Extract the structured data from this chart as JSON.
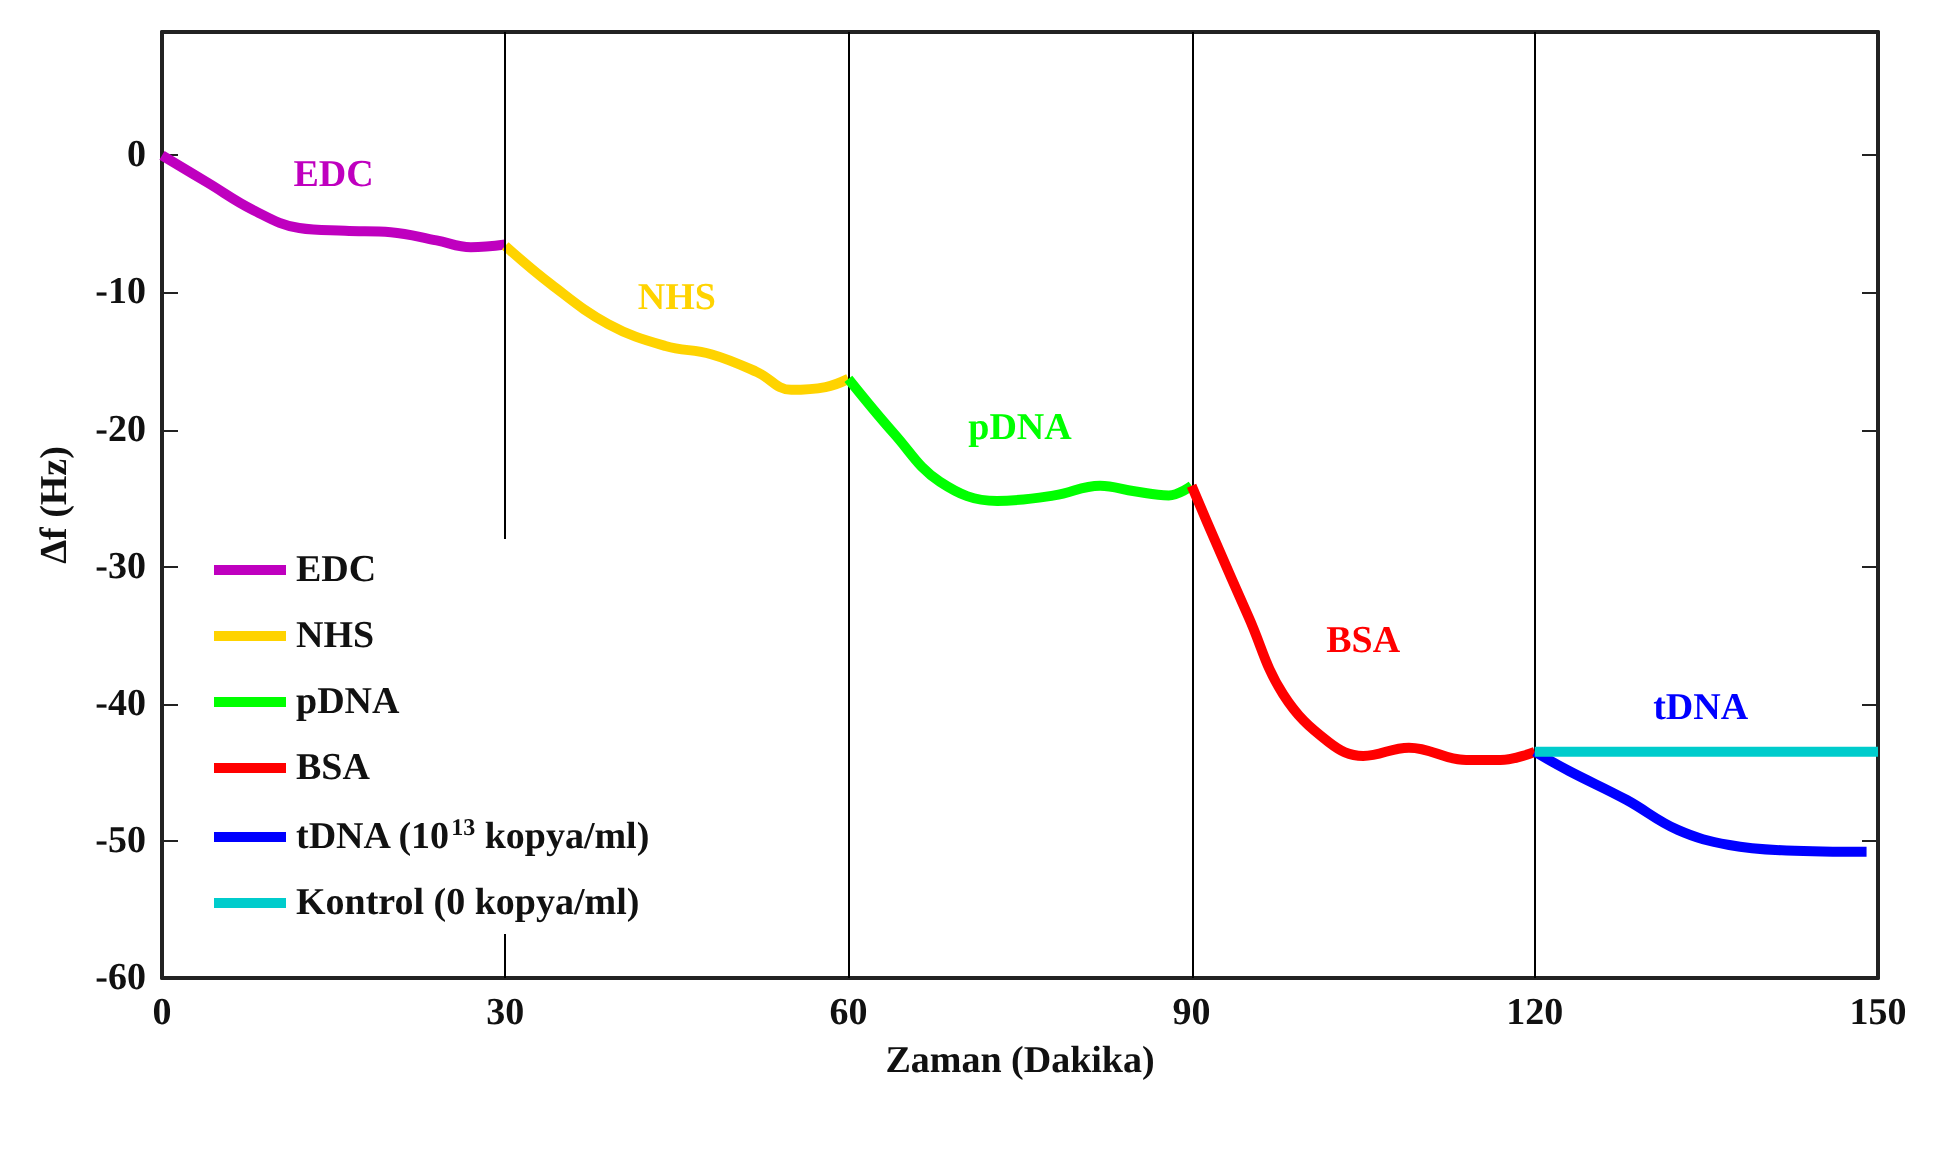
{
  "chart_data": {
    "type": "line",
    "xlabel": "Zaman (Dakika)",
    "ylabel": "Δf (Hz)",
    "xlim": [
      0,
      150
    ],
    "xticks": [
      0,
      30,
      60,
      90,
      120,
      150
    ],
    "ylim": [
      -60,
      9
    ],
    "yticks": [
      0,
      -10,
      -20,
      -30,
      -40,
      -50,
      -60
    ],
    "grid": false,
    "legend": "bottom left",
    "marker": "none",
    "line_style": "solid",
    "series": [
      {
        "name": "EDC",
        "color": "#bf00bf",
        "x": [
          0,
          4,
          8,
          12,
          16,
          20,
          24,
          27,
          30
        ],
        "values": [
          0,
          -2,
          -4,
          -5.3,
          -5.5,
          -5.6,
          -6.2,
          -6.7,
          -6.5
        ]
      },
      {
        "name": "NHS",
        "color": "#ffd300",
        "x": [
          30,
          34,
          39,
          44,
          48,
          52,
          55,
          58,
          60
        ],
        "values": [
          -6.6,
          -9.4,
          -12.3,
          -13.9,
          -14.5,
          -15.8,
          -17.1,
          -16.9,
          -16.3
        ]
      },
      {
        "name": "pDNA",
        "color": "#00ff00",
        "x": [
          60,
          64,
          68,
          73,
          78,
          82,
          85,
          88,
          90
        ],
        "values": [
          -16.3,
          -20.3,
          -23.8,
          -25.2,
          -24.8,
          -24.1,
          -24.5,
          -24.8,
          -24.1
        ]
      },
      {
        "name": "BSA",
        "color": "#ff0000",
        "x": [
          90,
          92,
          95,
          98,
          102,
          105,
          109,
          114,
          117,
          120
        ],
        "values": [
          -24.1,
          -28,
          -33.7,
          -39.3,
          -42.8,
          -43.8,
          -43.2,
          -44.1,
          -44.1,
          -43.5
        ]
      },
      {
        "name": "tDNA (10$^{13}$ kopya/ml)",
        "color": "#0000ff",
        "x": [
          120,
          123,
          128,
          132.5,
          137,
          142,
          149
        ],
        "values": [
          -43.5,
          -44.9,
          -47,
          -49.2,
          -50.3,
          -50.7,
          -50.8
        ]
      },
      {
        "name": "Kontrol (0 kopya/ml)",
        "color": "#00cccc",
        "x": [
          120,
          150
        ],
        "values": [
          -43.5,
          -43.5
        ]
      }
    ],
    "ref_lines": [
      {
        "axis": "x",
        "value": 30,
        "color": "#000000"
      },
      {
        "axis": "x",
        "value": 60,
        "color": "#000000"
      },
      {
        "axis": "x",
        "value": 90,
        "color": "#000000"
      },
      {
        "axis": "x",
        "value": 120,
        "color": "#000000"
      }
    ],
    "annotations": [
      "EDC",
      "NHS",
      "pDNA",
      "BSA",
      "tDNA"
    ]
  }
}
